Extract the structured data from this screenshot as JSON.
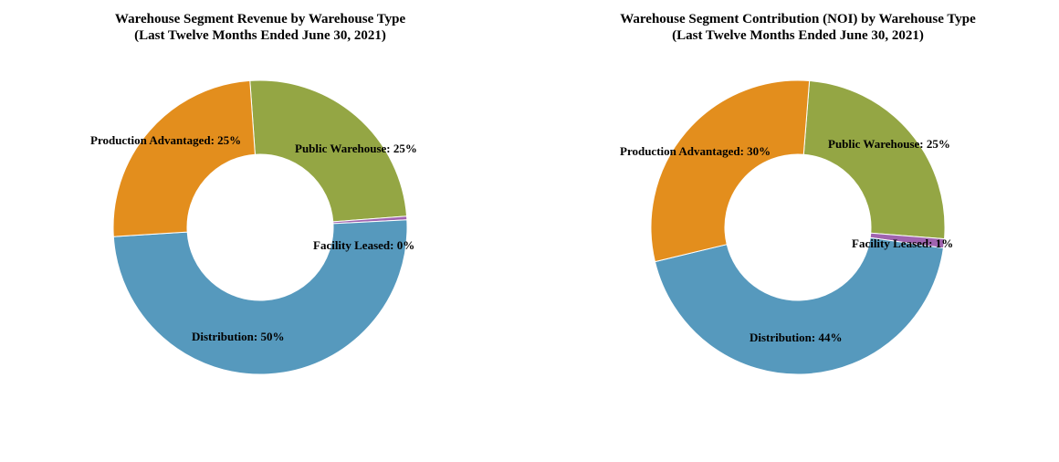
{
  "chart_data": [
    {
      "type": "pie",
      "title": "Warehouse Segment Revenue by Warehouse Type",
      "subtitle": "(Last Twelve Months Ended  June 30, 2021)",
      "categories": [
        "Public Warehouse",
        "Facility Leased",
        "Distribution",
        "Production Advantaged"
      ],
      "values": [
        25,
        0.4,
        50,
        25
      ],
      "labels": [
        "Public Warehouse: 25%",
        "Facility Leased: 0%",
        "Distribution: 50%",
        "Production Advantaged: 25%"
      ],
      "colors": [
        "#94a644",
        "#a064b0",
        "#5699bd",
        "#e38e1d"
      ],
      "donut": true,
      "legend": "none"
    },
    {
      "type": "pie",
      "title": "Warehouse Segment Contribution  (NOI) by Warehouse Type",
      "subtitle": "(Last Twelve Months Ended  June 30, 2021)",
      "categories": [
        "Public Warehouse",
        "Facility Leased",
        "Distribution",
        "Production Advantaged"
      ],
      "values": [
        25,
        1,
        44,
        30
      ],
      "labels": [
        "Public Warehouse: 25%",
        "Facility Leased: 1%",
        "Distribution: 44%",
        "Production Advantaged: 30%"
      ],
      "colors": [
        "#94a644",
        "#a064b0",
        "#5699bd",
        "#e38e1d"
      ],
      "donut": true,
      "legend": "none"
    }
  ]
}
